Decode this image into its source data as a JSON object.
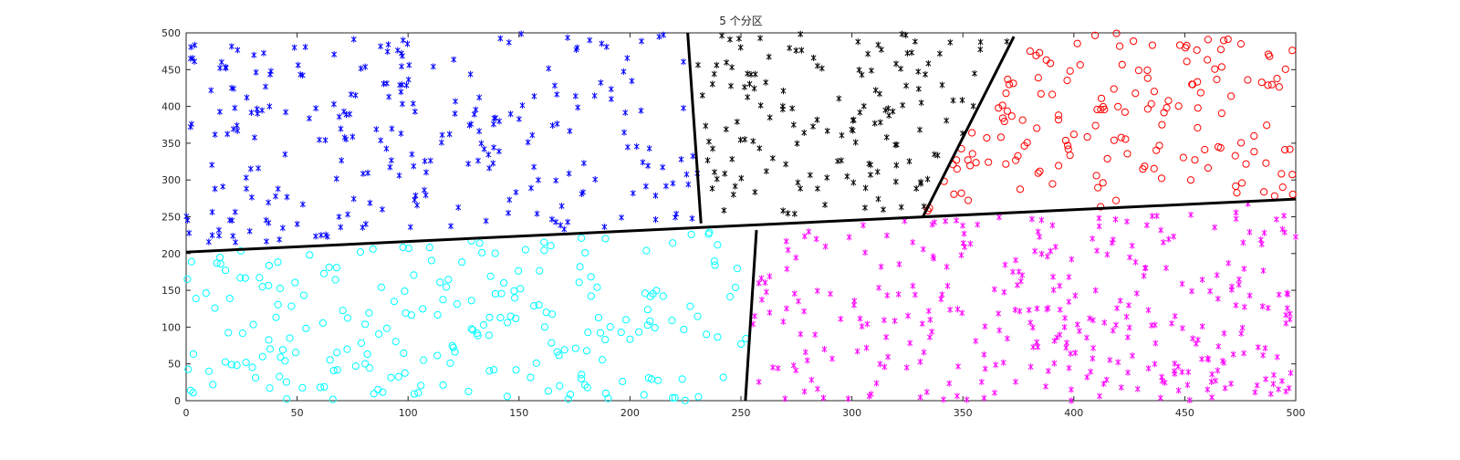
{
  "chart_data": {
    "type": "scatter",
    "title": "5 个分区",
    "xlabel": "",
    "ylabel": "",
    "xlim": [
      0,
      500
    ],
    "ylim": [
      0,
      500
    ],
    "xticks": [
      0,
      50,
      100,
      150,
      200,
      250,
      300,
      350,
      400,
      450,
      500
    ],
    "yticks": [
      0,
      50,
      100,
      150,
      200,
      250,
      300,
      350,
      400,
      450,
      500
    ],
    "grid": false,
    "boundaries": [
      {
        "points": [
          [
            0,
            202
          ],
          [
            500,
            274
          ]
        ],
        "color": "#000000"
      },
      {
        "points": [
          [
            226,
            500
          ],
          [
            232,
            241
          ]
        ],
        "color": "#000000"
      },
      {
        "points": [
          [
            373,
            495
          ],
          [
            332,
            250
          ]
        ],
        "color": "#000000"
      },
      {
        "points": [
          [
            257,
            232
          ],
          [
            252,
            0
          ]
        ],
        "color": "#000000"
      }
    ],
    "series": [
      {
        "region": [
          [
            0,
            500
          ],
          [
            226,
            500
          ],
          [
            232,
            241
          ],
          [
            0,
            207
          ]
        ],
        "marker": "asterisk",
        "color": "#0000ff",
        "count": 260,
        "seed": 11,
        "points": []
      },
      {
        "region": [
          [
            229,
            500
          ],
          [
            373,
            500
          ],
          [
            332,
            250
          ],
          [
            233,
            241
          ]
        ],
        "marker": "asterisk",
        "color": "#000000",
        "count": 150,
        "seed": 23,
        "points": []
      },
      {
        "region": [
          [
            375,
            500
          ],
          [
            500,
            500
          ],
          [
            500,
            273
          ],
          [
            333,
            252
          ]
        ],
        "marker": "circle",
        "color": "#ff0000",
        "count": 160,
        "seed": 37,
        "points": []
      },
      {
        "region": [
          [
            0,
            201
          ],
          [
            256,
            235
          ],
          [
            251,
            0
          ],
          [
            0,
            0
          ]
        ],
        "marker": "circle",
        "color": "#00ffff",
        "count": 230,
        "seed": 51,
        "points": []
      },
      {
        "region": [
          [
            258,
            239
          ],
          [
            500,
            271
          ],
          [
            500,
            0
          ],
          [
            253,
            0
          ]
        ],
        "marker": "asterisk",
        "color": "#ff00ff",
        "count": 330,
        "seed": 67,
        "points": []
      }
    ]
  }
}
